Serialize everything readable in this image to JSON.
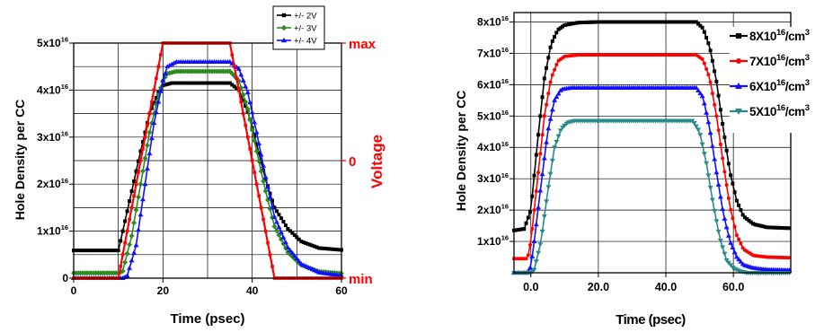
{
  "chart_data": [
    {
      "type": "line",
      "xlabel": "Time (psec)",
      "ylabel": "Hole Density per CC",
      "y2label": "Voltage",
      "xlim": [
        0,
        60
      ],
      "ylim": [
        0,
        5e+16
      ],
      "x_ticks": [
        "0",
        "20",
        "40",
        "60"
      ],
      "y_ticks": [
        {
          "base": "0",
          "exp": ""
        },
        {
          "base": "1x10",
          "exp": "16"
        },
        {
          "base": "2x10",
          "exp": "16"
        },
        {
          "base": "3x10",
          "exp": "16"
        },
        {
          "base": "4x10",
          "exp": "16"
        },
        {
          "base": "5x10",
          "exp": "16"
        }
      ],
      "y2_ticks": [
        "min",
        "0",
        "max"
      ],
      "grid": true,
      "legend_position": "top-right",
      "series": [
        {
          "name": "+/- 2V",
          "color": "#000000",
          "marker": "square",
          "axis": "left",
          "x": [
            0,
            10,
            11,
            13,
            15,
            17,
            19,
            20,
            22,
            30,
            35,
            37,
            39,
            41,
            43,
            45,
            48,
            51,
            55,
            60
          ],
          "y": [
            5900000000000000.0,
            5900000000000000.0,
            1e+16,
            1.85e+16,
            2.7e+16,
            3.5e+16,
            3.95e+16,
            4.1e+16,
            4.15e+16,
            4.15e+16,
            4.15e+16,
            4e+16,
            3.55e+16,
            2.85e+16,
            2.1e+16,
            1.5e+16,
            1.05e+16,
            7800000000000000.0,
            6400000000000000.0,
            6000000000000000.0
          ]
        },
        {
          "name": "+/- 3V",
          "color": "#2e8b22",
          "marker": "diamond",
          "axis": "left",
          "x": [
            0,
            10,
            11,
            13,
            15,
            17,
            19,
            20,
            21,
            23,
            35,
            37,
            39,
            41,
            43,
            45,
            48,
            51,
            55,
            60
          ],
          "y": [
            1100000000000000.0,
            1100000000000000.0,
            1500000000000000.0,
            9000000000000000.0,
            2e+16,
            3.1e+16,
            3.9e+16,
            4.2e+16,
            4.35e+16,
            4.4e+16,
            4.4e+16,
            4.2e+16,
            3.6e+16,
            2.7e+16,
            1.85e+16,
            1.1e+16,
            5500000000000000.0,
            2800000000000000.0,
            1400000000000000.0,
            1000000000000000.0
          ]
        },
        {
          "name": "+/- 4V",
          "color": "#1010ff",
          "marker": "triangle",
          "axis": "left",
          "x": [
            0,
            10,
            11,
            12,
            14,
            16,
            18,
            20,
            21,
            23,
            35,
            37,
            39,
            41,
            43,
            45,
            48,
            51,
            55,
            60
          ],
          "y": [
            0,
            0,
            0,
            500000000000000.0,
            7000000000000000.0,
            2e+16,
            3.3e+16,
            4.2e+16,
            4.5e+16,
            4.6e+16,
            4.6e+16,
            4.45e+16,
            3.95e+16,
            3.1e+16,
            2.15e+16,
            1.3e+16,
            6500000000000000.0,
            3000000000000000.0,
            1200000000000000.0,
            500000000000000.0
          ]
        },
        {
          "name": "Voltage",
          "color": "#ff0000",
          "marker": "square",
          "axis": "right",
          "x": [
            0,
            10,
            20,
            35,
            45,
            60
          ],
          "y": [
            0,
            0,
            1,
            1,
            0,
            0
          ]
        }
      ]
    },
    {
      "type": "line",
      "xlabel": "Time (psec)",
      "ylabel": "Hole Density per CC",
      "xlim": [
        -5,
        77
      ],
      "ylim": [
        0,
        8.3e+16
      ],
      "x_ticks": [
        {
          "label": "0.0",
          "value": 0
        },
        {
          "label": "20.0",
          "value": 20
        },
        {
          "label": "40.0",
          "value": 40
        },
        {
          "label": "60.0",
          "value": 60
        }
      ],
      "y_ticks": [
        {
          "base": "1x10",
          "exp": "16",
          "value": 1e+16
        },
        {
          "base": "2x10",
          "exp": "16",
          "value": 2e+16
        },
        {
          "base": "3x10",
          "exp": "16",
          "value": 3e+16
        },
        {
          "base": "4x10",
          "exp": "16",
          "value": 4e+16
        },
        {
          "base": "5x10",
          "exp": "16",
          "value": 5e+16
        },
        {
          "base": "6x10",
          "exp": "16",
          "value": 6e+16
        },
        {
          "base": "7x10",
          "exp": "16",
          "value": 7e+16
        },
        {
          "base": "8x10",
          "exp": "16",
          "value": 8e+16
        }
      ],
      "grid": true,
      "legend_position": "right",
      "series": [
        {
          "name_base": "8X10",
          "name_exp": "16",
          "name_unit": "/cm",
          "name_unit_exp": "3",
          "color": "#000000",
          "marker": "square",
          "x": [
            -5,
            -2,
            0,
            2,
            4,
            6,
            8,
            10,
            14,
            20,
            49,
            51,
            53,
            55,
            57,
            59,
            61,
            63,
            66,
            70,
            77
          ],
          "y": [
            1.35e+16,
            1.4e+16,
            2e+16,
            4.2e+16,
            6.2e+16,
            7.3e+16,
            7.75e+16,
            7.9e+16,
            7.98e+16,
            8e+16,
            8e+16,
            7.8e+16,
            7.2e+16,
            6.1e+16,
            4.6e+16,
            3.2e+16,
            2.3e+16,
            1.8e+16,
            1.55e+16,
            1.45e+16,
            1.42e+16
          ]
        },
        {
          "name_base": "7X10",
          "name_exp": "16",
          "name_unit": "/cm",
          "name_unit_exp": "3",
          "color": "#ff0000",
          "marker": "circle",
          "x": [
            -5,
            -1,
            0,
            2,
            4,
            6,
            8,
            10,
            14,
            20,
            49,
            51,
            53,
            55,
            57,
            59,
            61,
            63,
            66,
            70,
            77
          ],
          "y": [
            4500000000000000.0,
            4500000000000000.0,
            1e+16,
            3e+16,
            5e+16,
            6.2e+16,
            6.75e+16,
            6.9e+16,
            6.95e+16,
            6.95e+16,
            6.95e+16,
            6.8e+16,
            6.2e+16,
            5e+16,
            3.5e+16,
            2.1e+16,
            1.2e+16,
            7500000000000000.0,
            5500000000000000.0,
            5000000000000000.0,
            4800000000000000.0
          ]
        },
        {
          "name_base": "6X10",
          "name_exp": "16",
          "name_unit": "/cm",
          "name_unit_exp": "3",
          "color": "#1010ff",
          "marker": "triangle",
          "x": [
            -5,
            -1,
            0,
            1,
            3,
            5,
            7,
            9,
            12,
            20,
            49,
            51,
            53,
            55,
            57,
            59,
            61,
            63,
            66,
            70,
            77
          ],
          "y": [
            0,
            0,
            2000000000000000.0,
            1e+16,
            2.8e+16,
            4.5e+16,
            5.5e+16,
            5.85e+16,
            5.9e+16,
            5.9e+16,
            5.9e+16,
            5.6e+16,
            4.6e+16,
            3.2e+16,
            1.9e+16,
            1e+16,
            5000000000000000.0,
            2500000000000000.0,
            1500000000000000.0,
            1000000000000000.0,
            800000000000000.0
          ]
        },
        {
          "name_base": "5X10",
          "name_exp": "16",
          "name_unit": "/cm",
          "name_unit_exp": "3",
          "color": "#2a8a8a",
          "marker": "down-triangle",
          "x": [
            -5,
            0,
            1,
            3,
            5,
            7,
            9,
            11,
            13,
            20,
            48,
            50,
            52,
            54,
            56,
            58,
            60,
            62,
            64,
            68,
            77
          ],
          "y": [
            0,
            0,
            1000000000000000.0,
            1e+16,
            2.6e+16,
            4e+16,
            4.6e+16,
            4.8e+16,
            4.85e+16,
            4.85e+16,
            4.85e+16,
            4.5e+16,
            3.5e+16,
            2.2e+16,
            1.1e+16,
            4000000000000000.0,
            1500000000000000.0,
            500000000000000.0,
            0,
            0,
            0
          ]
        }
      ]
    }
  ]
}
